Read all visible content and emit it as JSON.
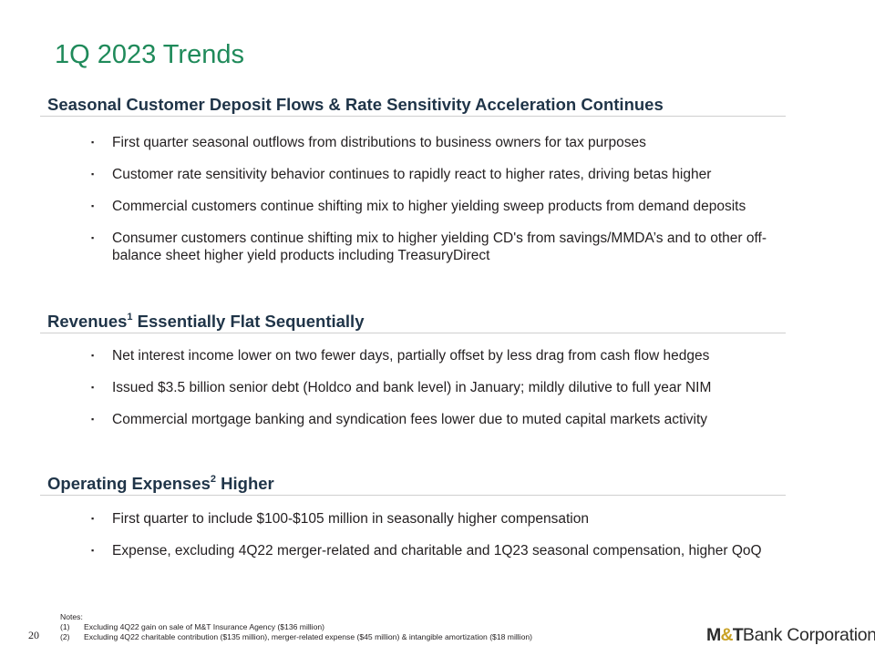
{
  "title": "1Q 2023 Trends",
  "sections": [
    {
      "heading": "Seasonal Customer Deposit Flows & Rate Sensitivity Acceleration Continues",
      "bullets": [
        "First quarter seasonal outflows from distributions to business owners for tax purposes",
        "Customer rate sensitivity behavior continues to rapidly react to higher rates, driving betas higher",
        "Commercial customers continue shifting mix to higher yielding sweep products from demand deposits",
        "Consumer customers continue shifting mix to higher yielding CD's from savings/MMDA’s and to other off-balance sheet higher yield products including TreasuryDirect"
      ]
    },
    {
      "heading_pre": "Revenues",
      "heading_sup": "1",
      "heading_post": " Essentially Flat Sequentially",
      "bullets": [
        "Net interest income lower on two fewer days, partially offset by less drag from cash flow hedges",
        "Issued $3.5 billion senior debt (Holdco and bank level) in January; mildly dilutive to full year NIM",
        "Commercial mortgage banking and syndication fees lower due to muted capital markets activity"
      ]
    },
    {
      "heading_pre": "Operating Expenses",
      "heading_sup": "2",
      "heading_post": " Higher",
      "bullets": [
        "First quarter to include $100-$105 million in seasonally higher compensation",
        "Expense, excluding 4Q22 merger-related and charitable and 1Q23 seasonal compensation, higher QoQ"
      ]
    }
  ],
  "bullet_marker": "▪",
  "notes": {
    "label": "Notes:",
    "items": [
      {
        "num": "(1)",
        "text": "Excluding 4Q22 gain on sale of M&T Insurance Agency ($136 million)"
      },
      {
        "num": "(2)",
        "text": "Excluding 4Q22 charitable contribution ($135 million), merger-related expense ($45 million) & intangible amortization ($18 million)"
      }
    ]
  },
  "page_number": "20",
  "logo": {
    "part1": "M",
    "amp": "&",
    "part2": "T",
    "rest": "Bank Corporation"
  },
  "colors": {
    "title": "#1f8a5a",
    "heading": "#1f3448",
    "logo_accent": "#c9a227"
  }
}
